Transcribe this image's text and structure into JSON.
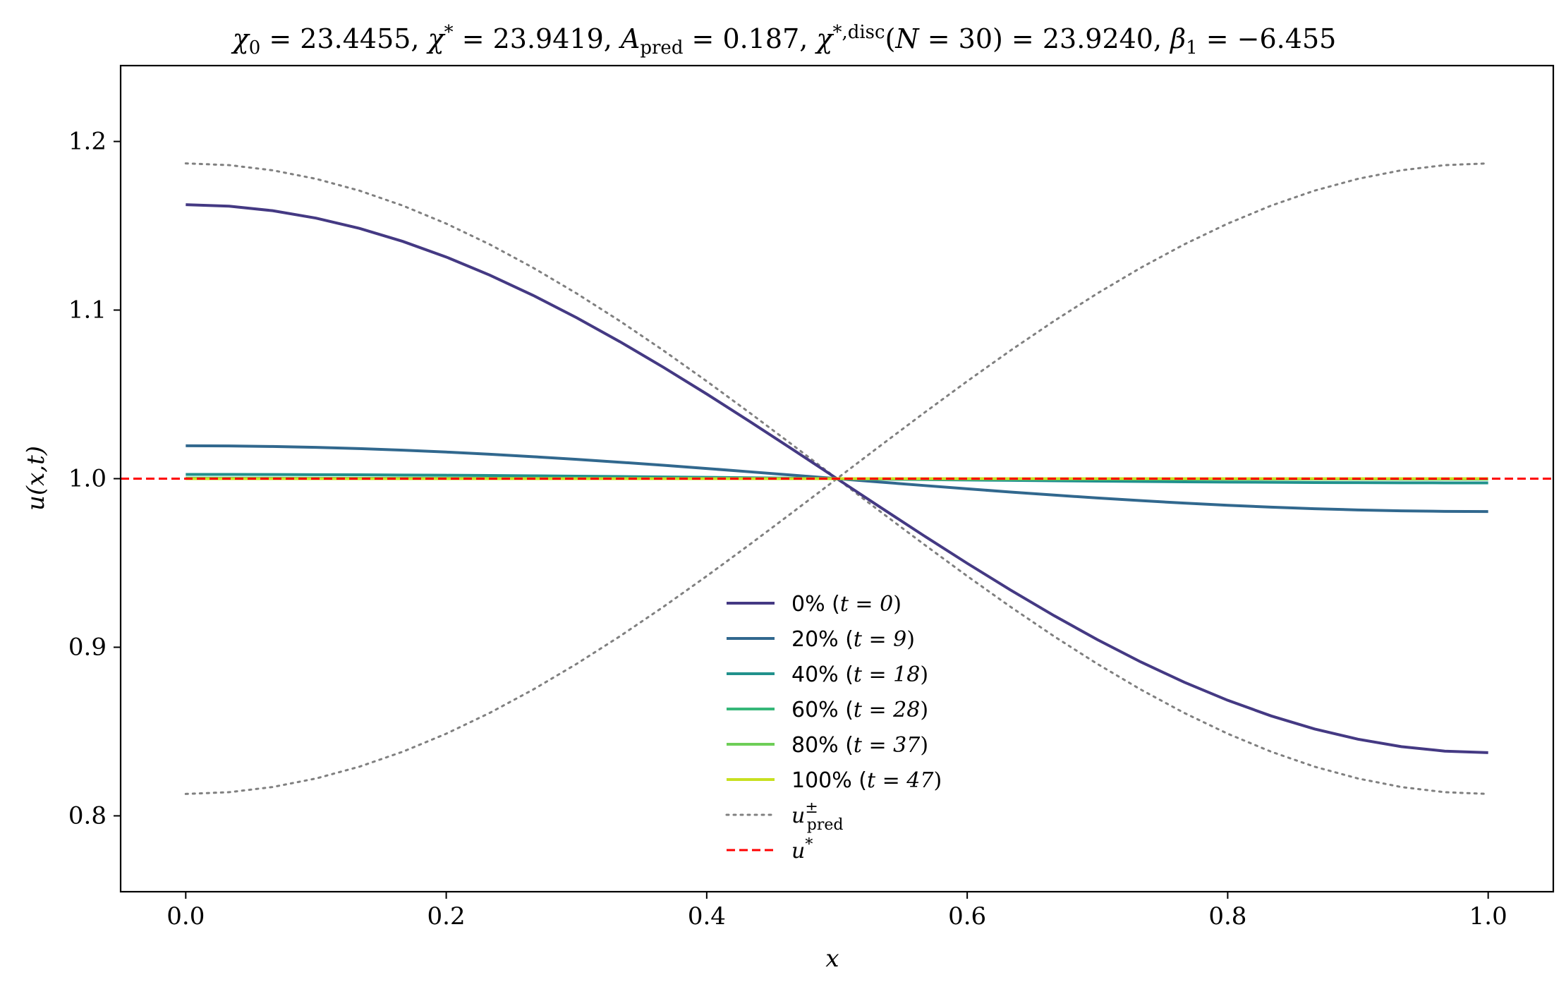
{
  "chart_data": {
    "type": "line",
    "title": "χ₀ = 23.4455,  χ* = 23.9419,  A_pred = 0.187,  χ*,disc(N = 30) = 23.9240,  β₁ = −6.455",
    "xlabel": "x",
    "ylabel": "u(x,t)",
    "xlim": [
      -0.05,
      1.05
    ],
    "ylim": [
      0.755,
      1.245
    ],
    "x_ticks": [
      0.0,
      0.2,
      0.4,
      0.6,
      0.8,
      1.0
    ],
    "x_tick_labels": [
      "0.0",
      "0.2",
      "0.4",
      "0.6",
      "0.8",
      "1.0"
    ],
    "y_ticks": [
      0.8,
      0.9,
      1.0,
      1.1,
      1.2
    ],
    "y_tick_labels": [
      "0.8",
      "0.9",
      "1.0",
      "1.1",
      "1.2"
    ],
    "grid": false,
    "legend_position": "lower-center",
    "x_grid_N": 30,
    "series": [
      {
        "name": "0% (t = 0)",
        "label_main": "0% (",
        "label_math": "t = 0",
        "label_end": ")",
        "color": "#443983",
        "style": "solid",
        "kind": "cos",
        "amplitude": 0.1625
      },
      {
        "name": "20% (t = 9)",
        "label_main": "20% (",
        "label_math": "t = 9",
        "label_end": ")",
        "color": "#31688e",
        "style": "solid",
        "kind": "cos",
        "amplitude": 0.0195
      },
      {
        "name": "40% (t = 18)",
        "label_main": "40% (",
        "label_math": "t = 18",
        "label_end": ")",
        "color": "#21918c",
        "style": "solid",
        "kind": "cos",
        "amplitude": 0.0025
      },
      {
        "name": "60% (t = 28)",
        "label_main": "60% (",
        "label_math": "t = 28",
        "label_end": ")",
        "color": "#35b779",
        "style": "solid",
        "kind": "cos",
        "amplitude": 0.0003
      },
      {
        "name": "80% (t = 37)",
        "label_main": "80% (",
        "label_math": "t = 37",
        "label_end": ")",
        "color": "#6ece58",
        "style": "solid",
        "kind": "cos",
        "amplitude": 4e-05
      },
      {
        "name": "100% (t = 47)",
        "label_main": "100% (",
        "label_math": "t = 47",
        "label_end": ")",
        "color": "#c8e020",
        "style": "solid",
        "kind": "cos",
        "amplitude": 5e-06
      },
      {
        "name": "u±pred",
        "label_main": "u",
        "label_sup": "±",
        "label_sub": "pred",
        "color": "#808080",
        "style": "dotted",
        "kind": "cos_pm",
        "amplitude": 0.187
      },
      {
        "name": "u*",
        "label_main": "u",
        "label_sup": "*",
        "color": "#ff0000",
        "style": "dashed",
        "kind": "hline",
        "value": 1.0
      }
    ]
  }
}
